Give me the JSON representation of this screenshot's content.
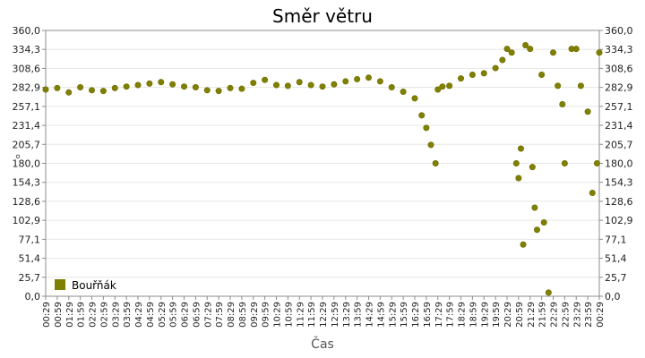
{
  "chart_data": {
    "type": "scatter",
    "title": "Směr větru",
    "xlabel": "Čas",
    "ylabel": "°",
    "ylim": [
      0,
      360
    ],
    "y_ticks": [
      "0,0",
      "25,7",
      "51,4",
      "77,1",
      "102,9",
      "128,6",
      "154,3",
      "180,0",
      "205,7",
      "231,4",
      "257,1",
      "282,9",
      "308,6",
      "334,3",
      "360,0"
    ],
    "x_ticks": [
      "00:29",
      "00:59",
      "01:29",
      "01:59",
      "02:29",
      "02:59",
      "03:29",
      "03:59",
      "04:29",
      "04:59",
      "05:29",
      "05:59",
      "06:29",
      "06:59",
      "07:29",
      "07:59",
      "08:29",
      "08:59",
      "09:29",
      "09:59",
      "10:29",
      "10:59",
      "11:29",
      "11:59",
      "12:29",
      "12:59",
      "13:29",
      "13:59",
      "14:29",
      "14:59",
      "15:29",
      "15:59",
      "16:29",
      "16:59",
      "17:29",
      "17:59",
      "18:29",
      "18:59",
      "19:29",
      "19:59",
      "20:29",
      "20:59",
      "21:29",
      "21:59",
      "22:29",
      "22:59",
      "23:29",
      "23:59",
      "00:29"
    ],
    "grid": true,
    "legend": {
      "position": "bottom-left"
    },
    "series": [
      {
        "name": "Bouřňák",
        "color": "#808000",
        "x_hours": [
          0.0,
          0.5,
          1.0,
          1.5,
          2.0,
          2.5,
          3.0,
          3.5,
          4.0,
          4.5,
          5.0,
          5.5,
          6.0,
          6.5,
          7.0,
          7.5,
          8.0,
          8.5,
          9.0,
          9.5,
          10.0,
          10.5,
          11.0,
          11.5,
          12.0,
          12.5,
          13.0,
          13.5,
          14.0,
          14.5,
          15.0,
          15.5,
          16.0,
          16.3,
          16.5,
          16.7,
          16.9,
          17.0,
          17.2,
          17.5,
          18.0,
          18.5,
          19.0,
          19.5,
          19.8,
          20.0,
          20.2,
          20.4,
          20.5,
          20.6,
          20.7,
          20.8,
          21.0,
          21.1,
          21.2,
          21.3,
          21.5,
          21.6,
          21.8,
          22.0,
          22.2,
          22.4,
          22.5,
          22.8,
          23.0,
          23.2,
          23.5,
          23.7,
          23.9,
          24.0
        ],
        "y": [
          280,
          282,
          276,
          283,
          279,
          278,
          282,
          284,
          286,
          288,
          290,
          287,
          284,
          283,
          279,
          278,
          282,
          281,
          289,
          293,
          286,
          285,
          290,
          286,
          284,
          287,
          291,
          294,
          296,
          291,
          283,
          277,
          268,
          245,
          228,
          205,
          180,
          280,
          284,
          285,
          295,
          300,
          302,
          309,
          320,
          335,
          330,
          180,
          160,
          200,
          70,
          340,
          335,
          175,
          120,
          90,
          300,
          100,
          5,
          330,
          285,
          260,
          180,
          335,
          335,
          285,
          250,
          140,
          180,
          330
        ]
      }
    ]
  }
}
